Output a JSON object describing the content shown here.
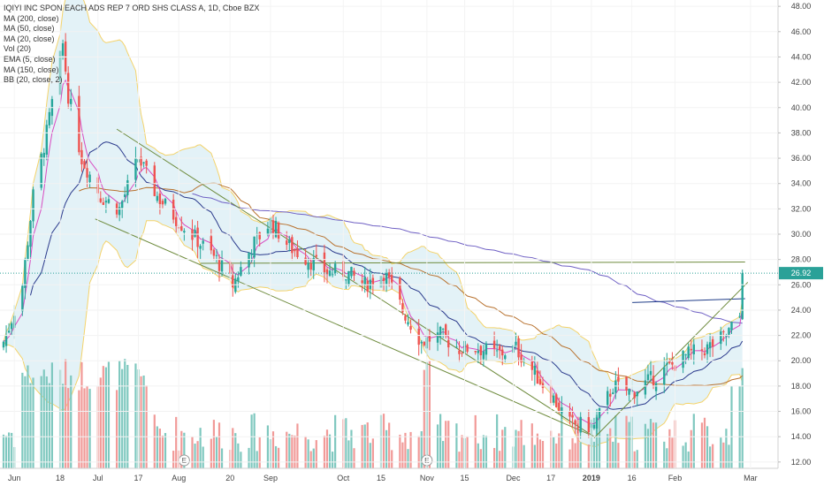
{
  "chart_data": {
    "type": "candlestick",
    "title": "IQIYI INC SPON EACH ADS REP 7 ORD SHS CLASS A, 1D, Cboe BZX",
    "indicators": [
      "MA (200, close)",
      "MA (50, close)",
      "MA (20, close)",
      "Vol (20)",
      "EMA (5, close)",
      "MA (150, close)",
      "BB (20, close, 2)"
    ],
    "ylim": [
      11.5,
      48.5
    ],
    "y_ticks": [
      "48.00",
      "46.00",
      "44.00",
      "42.00",
      "40.00",
      "38.00",
      "36.00",
      "34.00",
      "32.00",
      "30.00",
      "28.00",
      "26.00",
      "24.00",
      "22.00",
      "20.00",
      "18.00",
      "16.00",
      "14.00",
      "12.00"
    ],
    "x_ticks": [
      {
        "label": "Jun",
        "major": false
      },
      {
        "label": "18",
        "major": false
      },
      {
        "label": "Jul",
        "major": false
      },
      {
        "label": "17",
        "major": false
      },
      {
        "label": "Aug",
        "major": false
      },
      {
        "label": "20",
        "major": false
      },
      {
        "label": "Sep",
        "major": false
      },
      {
        "label": "Oct",
        "major": false
      },
      {
        "label": "15",
        "major": false
      },
      {
        "label": "Nov",
        "major": false
      },
      {
        "label": "15",
        "major": false
      },
      {
        "label": "Dec",
        "major": false
      },
      {
        "label": "17",
        "major": false
      },
      {
        "label": "2019",
        "major": true
      },
      {
        "label": "16",
        "major": false
      },
      {
        "label": "Feb",
        "major": false
      },
      {
        "label": "Mar",
        "major": false
      }
    ],
    "earnings_markers": [
      "E",
      "E"
    ],
    "last_price": 26.92,
    "last_price_label": "26.92",
    "colors": {
      "up": "#26a69a",
      "down": "#ef5350",
      "bb_fill": "#e3f2f7",
      "bb_line": "#f4d36b",
      "ema5": "#d94bc1",
      "ma20": "#2b3a8c",
      "ma50": "#b8722f",
      "ma150": "#6f60c4",
      "ma200": "#1f3c88",
      "trend": "#6e8b3d",
      "last_price_line": "#2aa198"
    },
    "trendlines": [
      {
        "from": [
          "Jul 9",
          38.3
        ],
        "to": [
          "Jan 2",
          14.0
        ]
      },
      {
        "from": [
          "Jul 1",
          31.2
        ],
        "to": [
          "Dec 31",
          14.2
        ]
      },
      {
        "from": [
          "Jan 2",
          13.9
        ],
        "to": [
          "Feb 28",
          26.2
        ]
      },
      {
        "from": [
          "Aug 9",
          27.7
        ],
        "to": [
          "Feb 27",
          27.8
        ]
      }
    ]
  }
}
